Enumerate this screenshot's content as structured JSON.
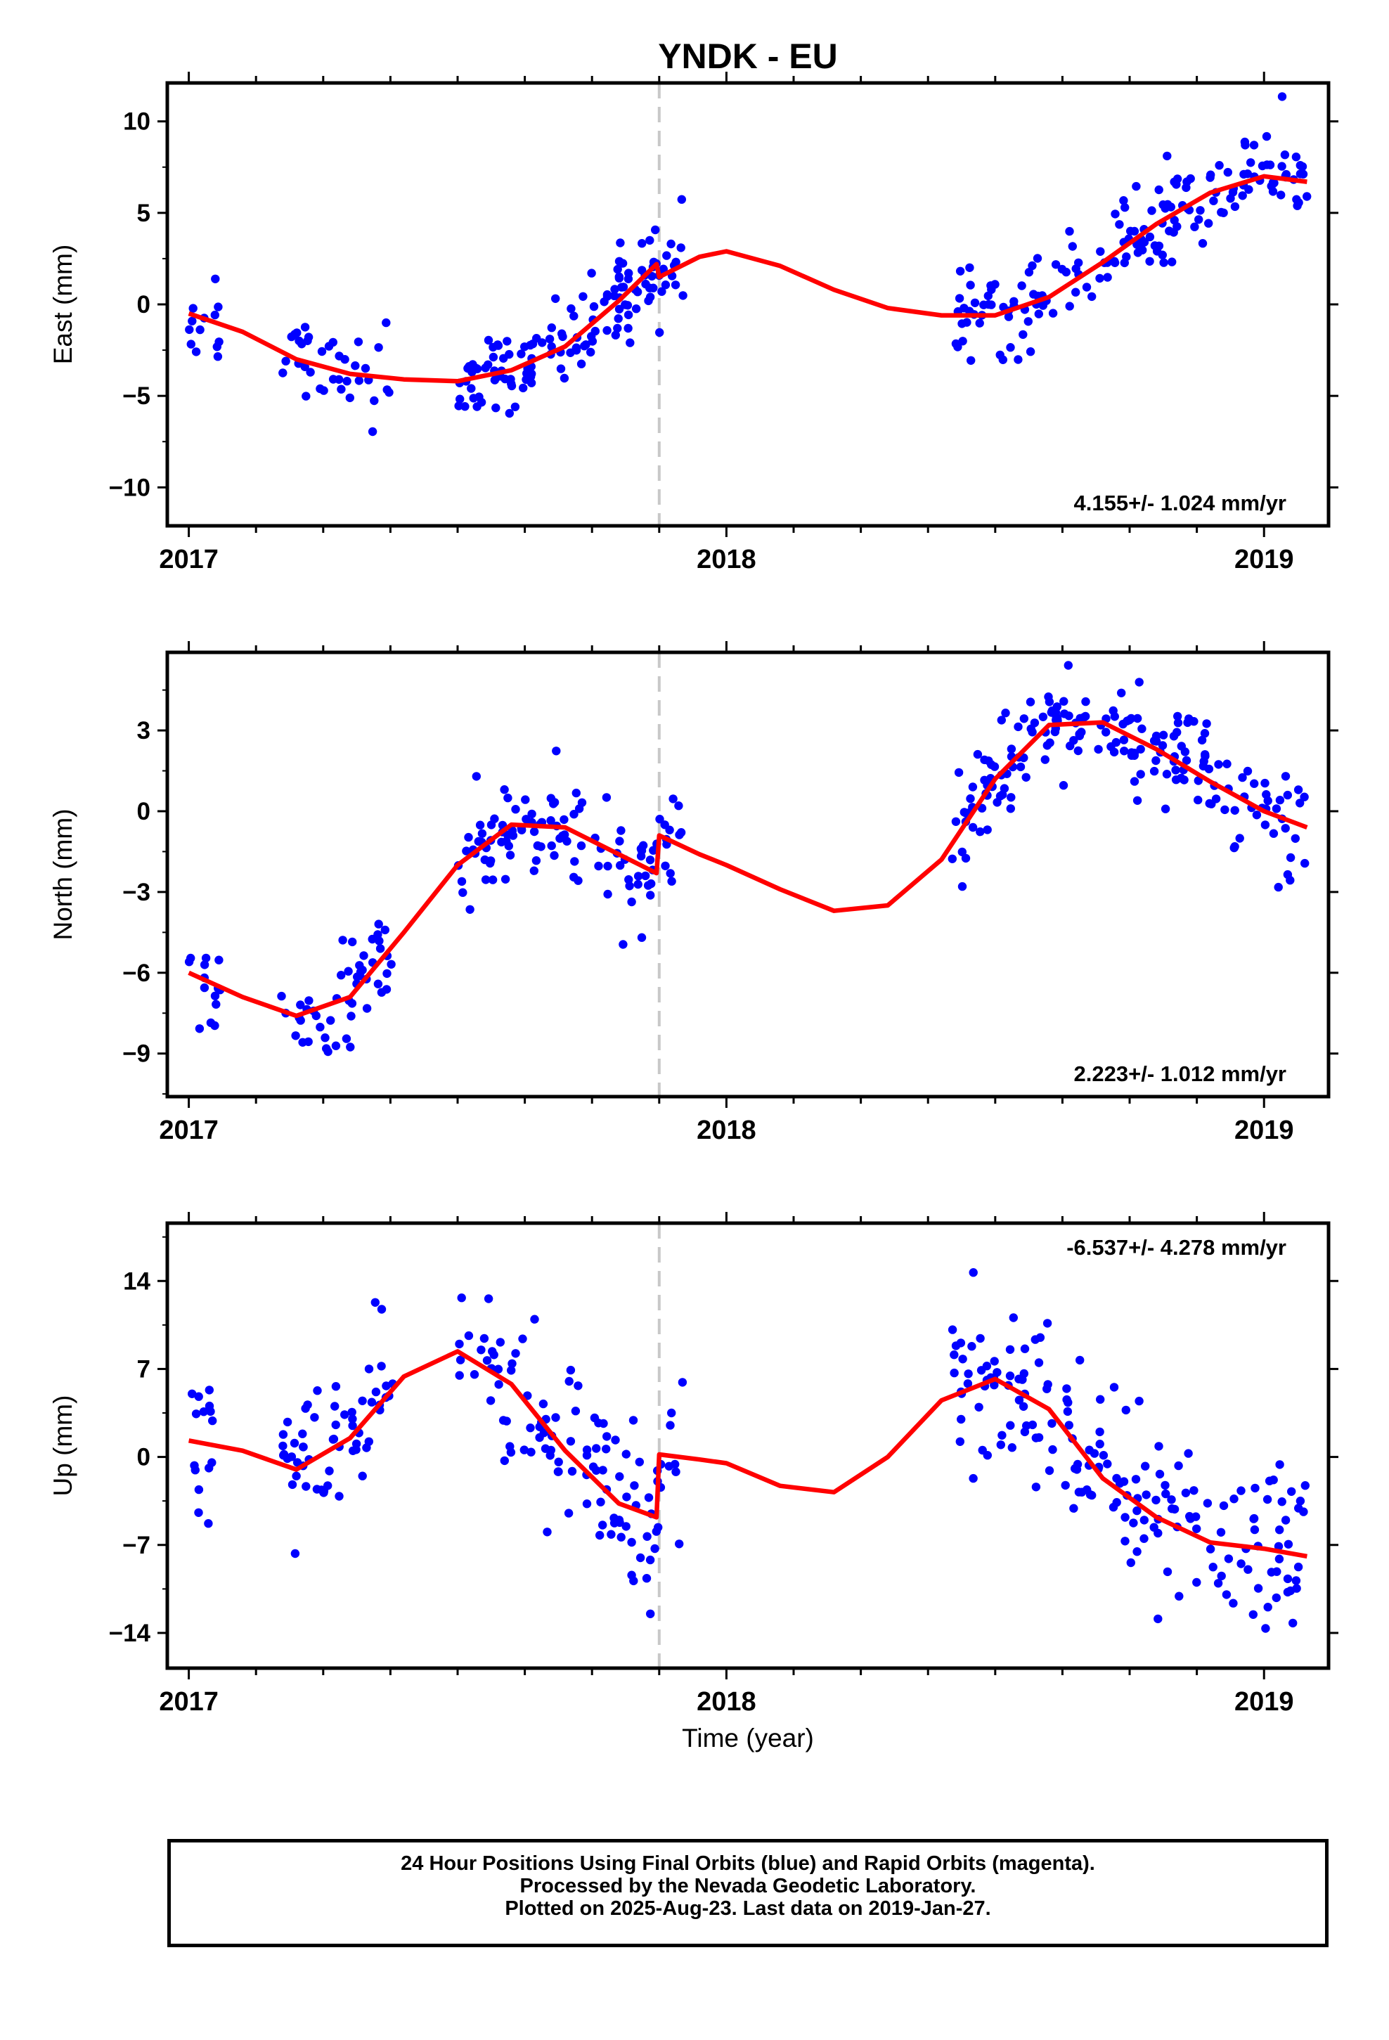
{
  "figure": {
    "title": "YNDK - EU",
    "xlabel": "Time (year)"
  },
  "footer": {
    "line1": "24 Hour Positions Using Final Orbits (blue) and Rapid Orbits (magenta).",
    "line2": "Processed by the Nevada Geodetic Laboratory.",
    "line3": "Plotted on 2025-Aug-23. Last data on 2019-Jan-27."
  },
  "colors": {
    "points": "#0000ff",
    "fit": "#ff0000",
    "break_line": "#c8c8c8"
  },
  "chart_data": [
    {
      "type": "scatter",
      "ylabel": "East (mm)",
      "xlim": [
        2016.96,
        2019.12
      ],
      "ylim": [
        -12.1,
        12.1
      ],
      "yticks": [
        -10,
        -5,
        0,
        5,
        10
      ],
      "xticks": [
        2017,
        2018,
        2019
      ],
      "rate_label": "4.155+/- 1.024 mm/yr",
      "rate_position": "bottom-right",
      "break_x": 2017.875,
      "gaps": [
        [
          2017.92,
          2018.42
        ]
      ],
      "fit_x": [
        2017.0,
        2017.1,
        2017.2,
        2017.3,
        2017.4,
        2017.5,
        2017.6,
        2017.7,
        2017.8,
        2017.87,
        2017.875,
        2017.95,
        2018.0,
        2018.1,
        2018.2,
        2018.3,
        2018.4,
        2018.5,
        2018.6,
        2018.7,
        2018.8,
        2018.9,
        2019.0,
        2019.08
      ],
      "fit_y": [
        -0.5,
        -1.5,
        -3.0,
        -3.8,
        -4.1,
        -4.2,
        -3.6,
        -2.3,
        0.2,
        2.2,
        1.5,
        2.6,
        2.9,
        2.1,
        0.8,
        -0.2,
        -0.6,
        -0.6,
        0.4,
        2.3,
        4.4,
        6.1,
        7.0,
        6.7
      ],
      "points": {
        "seed": 11,
        "noise": 1.2
      }
    },
    {
      "type": "scatter",
      "ylabel": "North (mm)",
      "xlim": [
        2016.96,
        2019.12
      ],
      "ylim": [
        -10.6,
        5.9
      ],
      "yticks": [
        -9,
        -6,
        -3,
        0,
        3
      ],
      "xticks": [
        2017,
        2018,
        2019
      ],
      "rate_label": "2.223+/- 1.012 mm/yr",
      "rate_position": "bottom-right",
      "break_x": 2017.875,
      "gaps": [
        [
          2017.92,
          2018.42
        ]
      ],
      "fit_x": [
        2017.0,
        2017.1,
        2017.2,
        2017.3,
        2017.4,
        2017.5,
        2017.6,
        2017.7,
        2017.8,
        2017.87,
        2017.875,
        2017.95,
        2018.0,
        2018.1,
        2018.2,
        2018.3,
        2018.4,
        2018.5,
        2018.6,
        2018.7,
        2018.8,
        2018.9,
        2019.0,
        2019.08
      ],
      "fit_y": [
        -6.0,
        -6.9,
        -7.6,
        -6.9,
        -4.5,
        -2.0,
        -0.5,
        -0.6,
        -1.6,
        -2.3,
        -0.9,
        -1.6,
        -2.0,
        -2.9,
        -3.7,
        -3.5,
        -1.8,
        1.2,
        3.2,
        3.3,
        2.3,
        1.1,
        0.0,
        -0.6
      ],
      "points": {
        "seed": 23,
        "noise": 0.9
      }
    },
    {
      "type": "scatter",
      "ylabel": "Up (mm)",
      "xlim": [
        2016.96,
        2019.12
      ],
      "ylim": [
        -16.8,
        18.6
      ],
      "yticks": [
        -14,
        -7,
        0,
        7,
        14
      ],
      "xticks": [
        2017,
        2018,
        2019
      ],
      "rate_label": "-6.537+/- 4.278 mm/yr",
      "rate_position": "top-right",
      "break_x": 2017.875,
      "gaps": [
        [
          2017.92,
          2018.42
        ]
      ],
      "fit_x": [
        2017.0,
        2017.1,
        2017.2,
        2017.3,
        2017.4,
        2017.5,
        2017.6,
        2017.7,
        2017.8,
        2017.87,
        2017.875,
        2017.95,
        2018.0,
        2018.1,
        2018.2,
        2018.3,
        2018.4,
        2018.5,
        2018.6,
        2018.7,
        2018.8,
        2018.9,
        2019.0,
        2019.08
      ],
      "fit_y": [
        1.3,
        0.5,
        -1.0,
        1.5,
        6.4,
        8.4,
        5.8,
        0.5,
        -3.7,
        -4.8,
        0.2,
        -0.2,
        -0.5,
        -2.3,
        -2.8,
        0.0,
        4.5,
        6.2,
        3.8,
        -1.7,
        -4.8,
        -6.8,
        -7.3,
        -7.9
      ],
      "points": {
        "seed": 37,
        "noise": 3.3
      }
    }
  ]
}
